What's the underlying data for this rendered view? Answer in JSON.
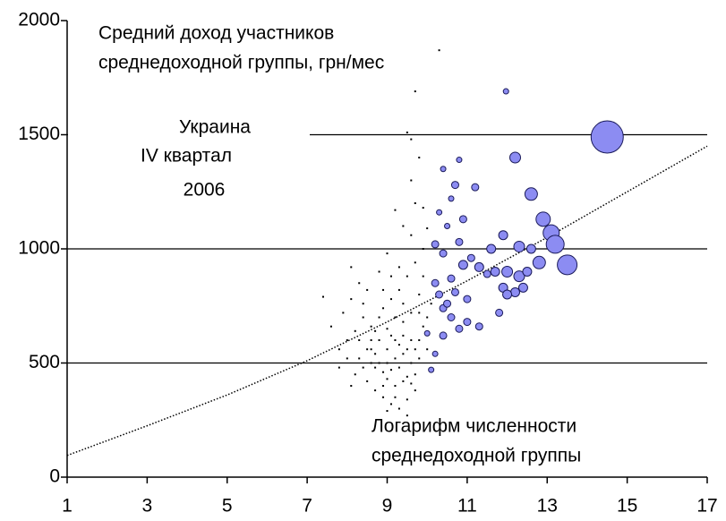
{
  "chart_data": {
    "type": "scatter",
    "title": [
      "Средний доход участников",
      "среднедоходной группы, грн/мес"
    ],
    "annotation": [
      "Украина",
      "IV квартал",
      "2006"
    ],
    "x_label": [
      "Логарифм численности",
      "среднедоходной группы"
    ],
    "xlim": [
      1,
      17
    ],
    "xticks": [
      1,
      3,
      5,
      7,
      9,
      11,
      13,
      15,
      17
    ],
    "ylim": [
      0,
      2000
    ],
    "yticks": [
      0,
      500,
      1000,
      1500,
      2000
    ],
    "grid": true,
    "series": [
      {
        "type": "bubble",
        "color": "#8c8cf2",
        "x": [
          14.5,
          11.97,
          12.2,
          12.6,
          12.9,
          13.1,
          13.2,
          13.5,
          12.8,
          12.3,
          12.6,
          11.9,
          11.6,
          11.2,
          10.7,
          10.8,
          10.4,
          10.6,
          10.9,
          10.3,
          10.5,
          10.2,
          10.4,
          10.9,
          11.3,
          11.7,
          12.0,
          12.3,
          12.5,
          11.9,
          12.2,
          12.0,
          12.4,
          11.8,
          11.3,
          11.0,
          10.8,
          10.6,
          10.4,
          10.3,
          10.2,
          10.4,
          10.2,
          10.1,
          10.0,
          10.6,
          11.0,
          10.7,
          10.5,
          11.5,
          10.8,
          11.1
        ],
        "values": [
          1490,
          1690,
          1400,
          1240,
          1130,
          1070,
          1020,
          930,
          940,
          1010,
          1000,
          1060,
          1000,
          1270,
          1280,
          1390,
          1350,
          1220,
          1130,
          1160,
          1100,
          1020,
          980,
          930,
          920,
          900,
          900,
          880,
          900,
          830,
          810,
          800,
          830,
          720,
          660,
          680,
          650,
          700,
          740,
          800,
          850,
          620,
          540,
          470,
          630,
          870,
          780,
          810,
          760,
          890,
          1030,
          960
        ],
        "sizes": [
          18,
          3,
          6,
          7,
          8,
          9,
          10,
          11,
          7,
          6,
          5,
          5,
          5,
          4,
          4,
          3,
          3,
          3,
          4,
          3,
          3,
          4,
          4,
          5,
          5,
          5,
          6,
          6,
          5,
          5,
          5,
          5,
          5,
          4,
          4,
          4,
          4,
          4,
          4,
          4,
          4,
          4,
          3,
          3,
          3,
          4,
          4,
          4,
          4,
          4,
          4,
          4
        ]
      },
      {
        "type": "dots",
        "color": "#000000",
        "x": [
          8.1,
          8.2,
          8.3,
          8.4,
          8.5,
          8.6,
          8.7,
          8.8,
          8.9,
          9.0,
          9.1,
          9.2,
          9.3,
          9.4,
          9.5,
          9.6,
          9.7,
          9.8,
          8.5,
          8.7,
          8.9,
          9.1,
          9.3,
          9.5,
          9.7,
          8.3,
          8.6,
          8.8,
          9.0,
          9.2,
          9.4,
          9.6,
          9.8,
          9.9,
          9.7,
          9.5,
          9.3,
          9.1,
          8.9,
          8.4,
          8.2,
          8.0,
          7.8,
          7.6,
          7.9,
          8.1,
          8.3,
          8.1,
          7.4,
          7.8,
          8.0,
          9.9,
          9.6,
          9.4,
          9.2,
          9.7,
          9.9,
          10.0,
          9.6,
          9.8,
          9.5,
          9.6,
          9.7,
          10.3,
          8.6,
          8.8,
          9.0,
          9.2,
          9.4,
          9.6,
          8.7,
          9.0,
          9.3,
          9.5,
          9.8,
          10.0,
          10.0,
          10.1,
          9.9,
          9.8,
          8.9,
          9.1,
          9.3,
          9.0,
          8.8,
          8.5,
          8.4,
          9.2,
          8.9,
          9.4,
          9.6,
          9.0,
          9.5,
          9.2,
          8.6,
          9.7,
          9.1,
          9.4,
          8.7
        ],
        "values": [
          400,
          450,
          520,
          480,
          560,
          600,
          540,
          500,
          460,
          430,
          470,
          520,
          580,
          620,
          560,
          500,
          450,
          600,
          420,
          380,
          350,
          320,
          300,
          340,
          380,
          600,
          660,
          700,
          650,
          700,
          760,
          720,
          800,
          880,
          940,
          880,
          820,
          780,
          740,
          700,
          640,
          600,
          560,
          660,
          720,
          780,
          850,
          920,
          790,
          480,
          520,
          1000,
          1060,
          1100,
          1170,
          1200,
          1180,
          1090,
          1300,
          1400,
          1510,
          1480,
          1690,
          1870,
          560,
          600,
          560,
          600,
          540,
          600,
          480,
          500,
          480,
          440,
          520,
          560,
          700,
          760,
          660,
          720,
          820,
          880,
          920,
          980,
          900,
          820,
          760,
          400,
          400,
          420,
          410,
          290,
          270,
          350,
          500,
          560,
          620,
          680,
          640
        ]
      },
      {
        "type": "trend",
        "color": "#000000",
        "x": [
          1,
          3,
          5,
          7,
          9,
          11,
          13,
          15,
          17
        ],
        "values": [
          95,
          225,
          360,
          510,
          680,
          860,
          1050,
          1250,
          1450
        ]
      }
    ]
  }
}
